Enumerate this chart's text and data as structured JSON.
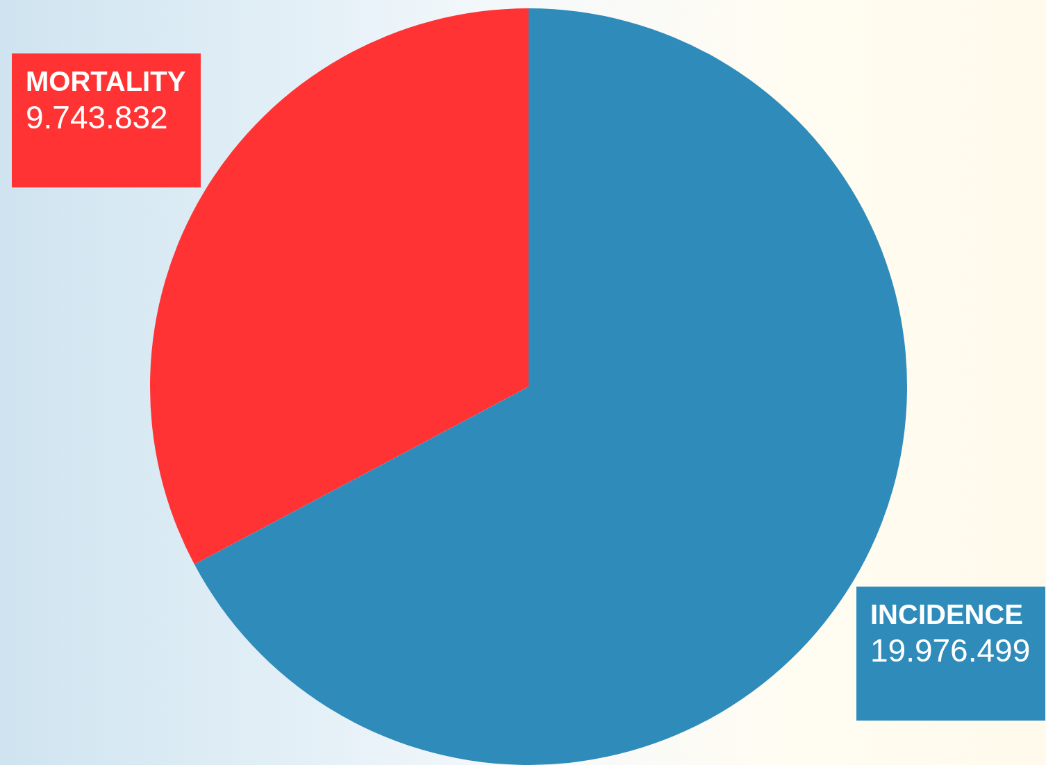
{
  "chart_data": {
    "type": "pie",
    "categories": [
      "MORTALITY",
      "INCIDENCE"
    ],
    "values": [
      9743832,
      19976499
    ],
    "colors": [
      "#ff3333",
      "#2e8bba"
    ],
    "value_labels": [
      "9.743.832",
      "19.976.499"
    ],
    "legend": false
  }
}
